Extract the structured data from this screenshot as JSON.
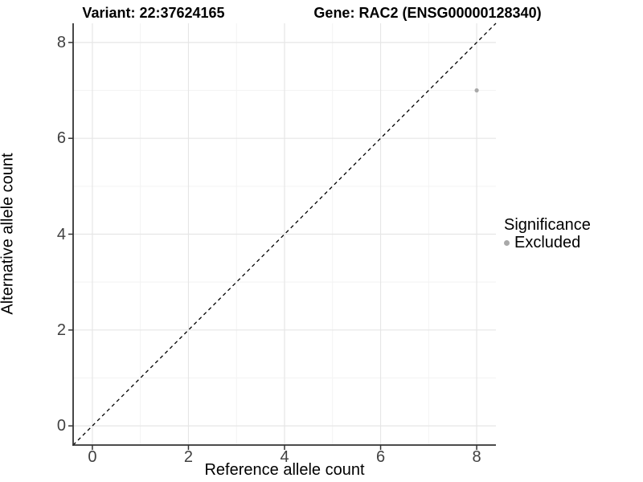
{
  "chart_data": {
    "type": "scatter",
    "title_left": "Variant: 22:37624165",
    "title_right": "Gene: RAC2 (ENSG00000128340)",
    "xlabel": "Reference allele count",
    "ylabel": "Alternative allele count",
    "xlim": [
      -0.4,
      8.4
    ],
    "ylim": [
      -0.4,
      8.4
    ],
    "xticks": [
      0,
      2,
      4,
      6,
      8
    ],
    "yticks": [
      0,
      2,
      4,
      6,
      8
    ],
    "x_minor_ticks": [
      1,
      3,
      5,
      7
    ],
    "y_minor_ticks": [
      1,
      3,
      5,
      7
    ],
    "grid": true,
    "reference_line": {
      "type": "identity",
      "style": "dashed",
      "color": "#000000"
    },
    "series": [
      {
        "name": "Excluded",
        "color": "#a9a9a9",
        "points": [
          {
            "x": 8,
            "y": 7
          }
        ]
      }
    ],
    "legend": {
      "title": "Significance",
      "position": "right",
      "entries": [
        {
          "label": "Excluded",
          "color": "#a9a9a9"
        }
      ]
    },
    "colors": {
      "grid_major": "#e6e6e6",
      "grid_minor": "#f3f3f3",
      "axis_line": "#333333",
      "tick_mark": "#333333",
      "tick_label": "#404040"
    }
  }
}
